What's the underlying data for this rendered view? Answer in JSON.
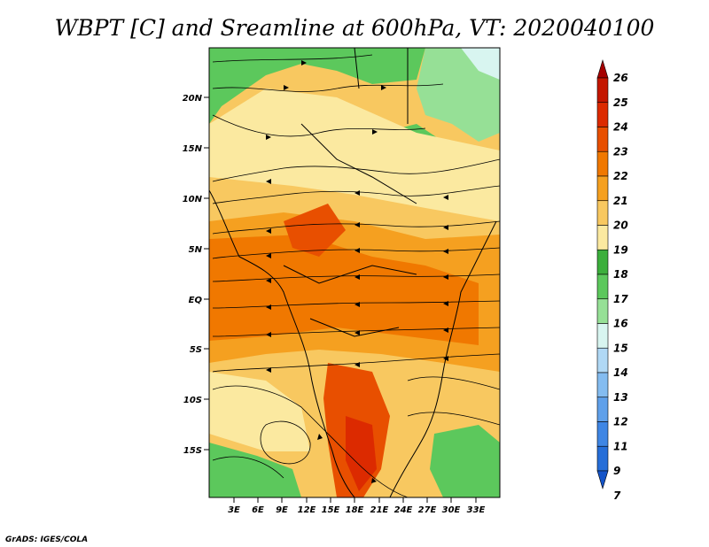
{
  "title": "WBPT [C] and Sreamline at 600hPa, VT: 2020040100",
  "credit": "GrADS: IGES/COLA",
  "map": {
    "lon_labels": [
      "3E",
      "6E",
      "9E",
      "12E",
      "15E",
      "18E",
      "21E",
      "24E",
      "27E",
      "30E",
      "33E"
    ],
    "lat_labels": [
      "20N",
      "15N",
      "10N",
      "5N",
      "EQ",
      "5S",
      "10S",
      "15S"
    ]
  },
  "colorbar": {
    "labels": [
      "26",
      "25",
      "24",
      "23",
      "22",
      "21",
      "20",
      "19",
      "18",
      "17",
      "16",
      "15",
      "14",
      "13",
      "12",
      "11",
      "9",
      "7"
    ],
    "colors": [
      "#a50000",
      "#c41600",
      "#dc2a00",
      "#e84f00",
      "#f07800",
      "#f5a020",
      "#f8c860",
      "#fbe9a0",
      "#3caf3c",
      "#5cc85c",
      "#96e096",
      "#d8f5f0",
      "#b0d8f5",
      "#84bcf0",
      "#5fa0ea",
      "#3f86e4",
      "#266ed8",
      "#1454c8"
    ]
  },
  "colors": {
    "land_green": "#5cc85c",
    "warm_orange": "#f0a040",
    "streamline": "#000000"
  }
}
